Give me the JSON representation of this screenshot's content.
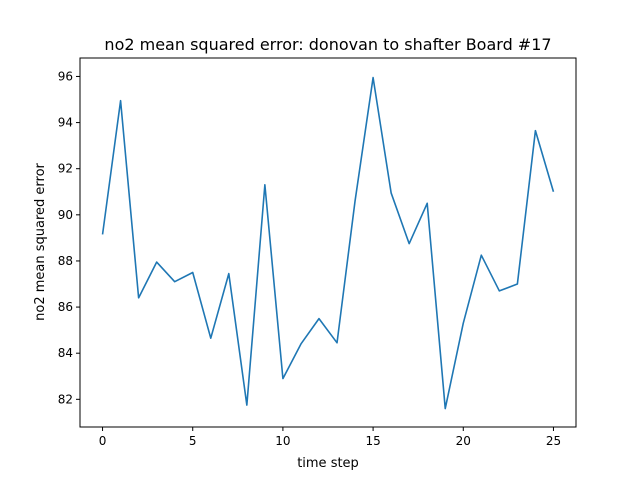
{
  "chart_data": {
    "type": "line",
    "title": "no2 mean squared error: donovan to shafter Board #17",
    "xlabel": "time step",
    "ylabel": "no2 mean squared error",
    "xlim": [
      -1.25,
      26.25
    ],
    "ylim": [
      80.8,
      96.8
    ],
    "xticks": [
      0,
      5,
      10,
      15,
      20,
      25
    ],
    "yticks": [
      82,
      84,
      86,
      88,
      90,
      92,
      94,
      96
    ],
    "grid": false,
    "legend": "none",
    "series": [
      {
        "color": "#1f77b4",
        "x": [
          0,
          1,
          2,
          3,
          4,
          5,
          6,
          7,
          8,
          9,
          10,
          11,
          12,
          13,
          14,
          15,
          16,
          17,
          18,
          19,
          20,
          21,
          22,
          23,
          24,
          25
        ],
        "values": [
          89.15,
          94.95,
          86.4,
          87.95,
          87.1,
          87.5,
          84.65,
          87.45,
          81.75,
          91.3,
          82.9,
          84.4,
          85.5,
          84.45,
          90.6,
          95.95,
          90.95,
          88.75,
          90.5,
          81.6,
          85.3,
          88.25,
          86.7,
          87.0,
          93.65,
          91.0
        ]
      }
    ]
  }
}
